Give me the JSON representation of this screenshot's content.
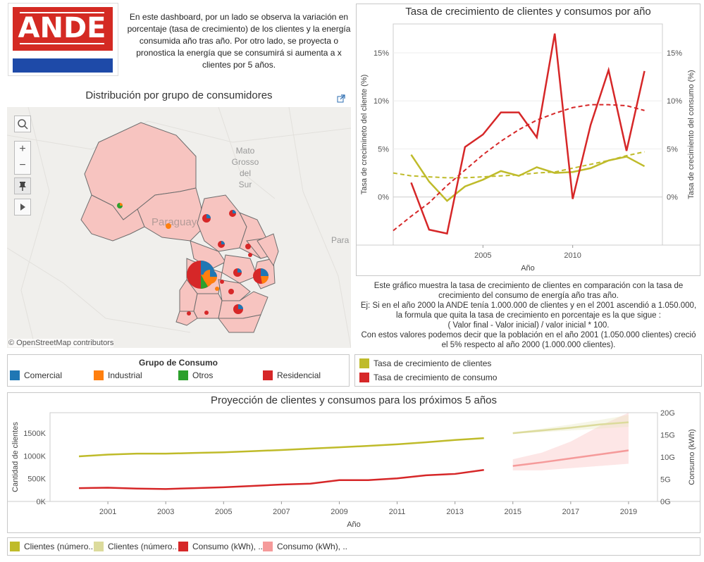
{
  "logo": {
    "text": "ANDE",
    "colors": {
      "red": "#d42a23",
      "blue": "#1e4aa8"
    }
  },
  "intro_text": "En este dashboard, por un lado se observa la variación en porcentaje (tasa de crecimiento) de los clientes y la energía consumida año tras año. Por otro lado, se proyecta o pronostica la energía que se consumirá si aumenta a x clientes por 5 años.",
  "map": {
    "title": "Distribución por grupo de consumidores",
    "labels": {
      "country": "Paraguay",
      "region_mato": "Mato",
      "region_grosso": "Grosso",
      "region_del": "del",
      "region_sur": "Sur",
      "region_para": "Para"
    },
    "attribution": "© OpenStreetMap contributors",
    "controls": [
      "search-icon",
      "zoom-in",
      "zoom-out",
      "pin",
      "play"
    ],
    "legend_title": "Grupo de Consumo",
    "legend": [
      {
        "label": "Comercial",
        "color": "#1f77b4"
      },
      {
        "label": "Industrial",
        "color": "#ff7f0e"
      },
      {
        "label": "Otros",
        "color": "#2ca02c"
      },
      {
        "label": "Residencial",
        "color": "#d62728"
      }
    ]
  },
  "growth": {
    "description": "Este gráfico muestra la tasa de crecimiento de clientes en comparación con la tasa de crecimiento del consumo de energía año tras año.\nEj: Si en el año 2000 la ANDE tenía 1.000.000 de clientes y en el 2001 ascendió a 1.050.000, la formula que quita la tasa de crecimiento en porcentaje es la que sigue :\n( Valor final - Valor inicial) / valor inicial * 100.\nCon estos valores podemos decir que la población en el año 2001 (1.050.000 clientes) creció el 5% respecto al año 2000 (1.000.000 clientes).",
    "legend": [
      {
        "label": "Tasa de crecimiento de clientes",
        "color": "#bfbb2a"
      },
      {
        "label": "Tasa de crecimiento de consumo",
        "color": "#d62728"
      }
    ]
  },
  "forecast": {
    "legend": [
      {
        "label": "Clientes (número..",
        "color": "#bfbb2a"
      },
      {
        "label": "Clientes (número..",
        "color": "#dcdb9c"
      },
      {
        "label": "Consumo (kWh), ..",
        "color": "#d62728"
      },
      {
        "label": "Consumo (kWh), ..",
        "color": "#f59a9a"
      }
    ]
  },
  "chart_data": [
    {
      "type": "line",
      "title": "Tasa de crecimiento de clientes y consumos por año",
      "xlabel": "Año",
      "ylabel_left": "Tasa de crecimineto del cliente (%)",
      "ylabel_right": "Tasa de crecimiento del consumo (%)",
      "xlim": [
        2000,
        2015
      ],
      "ylim": [
        -5,
        18
      ],
      "x_ticks": [
        2005,
        2010
      ],
      "y_ticks": [
        "0%",
        "5%",
        "10%",
        "15%"
      ],
      "y_tick_values": [
        0,
        5,
        10,
        15
      ],
      "x": [
        2001,
        2002,
        2003,
        2004,
        2005,
        2006,
        2007,
        2008,
        2009,
        2010,
        2011,
        2012,
        2013,
        2014
      ],
      "series": [
        {
          "name": "Tasa de crecimiento de clientes",
          "color": "#bfbb2a",
          "values": [
            4.4,
            1.6,
            -0.4,
            1.1,
            1.8,
            2.7,
            2.2,
            3.1,
            2.5,
            2.6,
            3.0,
            3.8,
            4.2,
            3.2
          ],
          "trend": [
            2.5,
            2.2,
            2.1,
            2.0,
            2.0,
            2.1,
            2.2,
            2.3,
            2.5,
            2.6,
            3.0,
            3.4,
            3.8,
            4.3,
            4.7
          ]
        },
        {
          "name": "Tasa de crecimiento de consumo",
          "color": "#d62728",
          "values": [
            1.5,
            -3.4,
            -3.8,
            5.2,
            6.5,
            8.8,
            8.8,
            6.2,
            17.0,
            -0.2,
            7.5,
            13.2,
            4.8,
            13.1
          ],
          "trend": [
            -3.5,
            -2.0,
            -0.6,
            1.2,
            2.8,
            4.4,
            5.8,
            7.0,
            8.0,
            8.7,
            9.3,
            9.6,
            9.6,
            9.5,
            9.0
          ]
        }
      ]
    },
    {
      "type": "line",
      "title": "Proyección de clientes y consumos para los próximos 5 años",
      "xlabel": "Año",
      "ylabel_left": "Cantidad de clientes",
      "ylabel_right": "Consumo (kWh)",
      "xlim": [
        1999,
        2020
      ],
      "x_ticks": [
        2001,
        2003,
        2005,
        2007,
        2009,
        2011,
        2013,
        2015,
        2017,
        2019
      ],
      "y_left_ticks": [
        "0K",
        "500K",
        "1000K",
        "1500K"
      ],
      "y_left_values": [
        0,
        500000,
        1000000,
        1500000
      ],
      "y_left_max": 1950000,
      "y_right_ticks": [
        "0G",
        "5G",
        "10G",
        "15G",
        "20G"
      ],
      "y_right_values": [
        0,
        5,
        10,
        15,
        20
      ],
      "y_right_max": 20,
      "clientes_actual": {
        "x": [
          2000,
          2001,
          2002,
          2003,
          2004,
          2005,
          2006,
          2007,
          2008,
          2009,
          2010,
          2011,
          2012,
          2013,
          2014
        ],
        "values": [
          990000,
          1030000,
          1050000,
          1050000,
          1065000,
          1080000,
          1105000,
          1130000,
          1160000,
          1190000,
          1220000,
          1255000,
          1300000,
          1350000,
          1390000
        ]
      },
      "clientes_forecast": {
        "x": [
          2015,
          2016,
          2017,
          2018,
          2019
        ],
        "values": [
          1500000,
          1560000,
          1620000,
          1690000,
          1740000
        ],
        "band_low": [
          1490000,
          1520000,
          1560000,
          1600000,
          1640000
        ],
        "band_high": [
          1520000,
          1600000,
          1690000,
          1790000,
          1900000
        ]
      },
      "consumo_actual": {
        "x": [
          2000,
          2001,
          2002,
          2003,
          2004,
          2005,
          2006,
          2007,
          2008,
          2009,
          2010,
          2011,
          2012,
          2013,
          2014
        ],
        "values": [
          3.0,
          3.1,
          2.9,
          2.8,
          3.0,
          3.2,
          3.5,
          3.8,
          4.0,
          4.8,
          4.8,
          5.2,
          5.9,
          6.2,
          7.1
        ]
      },
      "consumo_forecast": {
        "x": [
          2015,
          2016,
          2017,
          2018,
          2019
        ],
        "values": [
          8.0,
          8.8,
          9.7,
          10.6,
          11.5
        ],
        "band_low": [
          7.0,
          7.0,
          7.5,
          8.0,
          8.5
        ],
        "band_high": [
          9.5,
          11.0,
          13.5,
          17.0,
          20.0
        ]
      }
    }
  ]
}
